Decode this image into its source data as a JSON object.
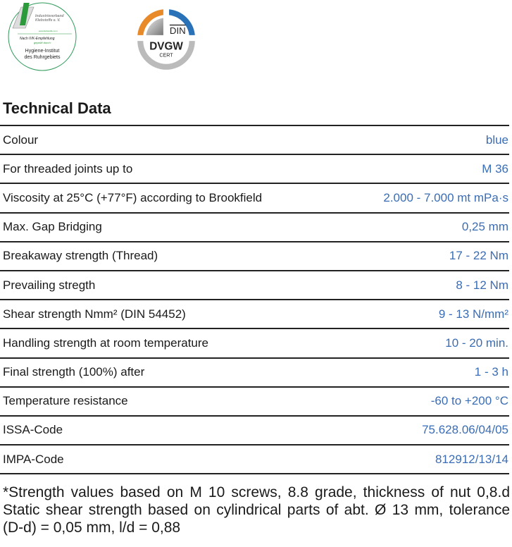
{
  "logos": {
    "ivk": [
      "Industrieverband",
      "Klebstoffe e. V.",
      "www.klebstoffe.com",
      "Nach IVK-Empfehlung",
      "geprüft durch:",
      "Hygiene-Institut",
      "des Ruhrgebiets"
    ],
    "dvgw": [
      "DIN",
      "DVGW",
      "CERT"
    ]
  },
  "title": "Technical Data",
  "rows": [
    {
      "label": "Colour",
      "value": "blue"
    },
    {
      "label": "For threaded joints up to",
      "value": "M 36"
    },
    {
      "label": "Viscosity  at 25°C (+77°F) according to Brookfield",
      "value": "2.000 - 7.000 mt mPa·s"
    },
    {
      "label": "Max. Gap Bridging",
      "value": "0,25 mm"
    },
    {
      "label": "Breakaway strength (Thread)",
      "value": "17 - 22 Nm"
    },
    {
      "label": "Prevailing stregth",
      "value": "8 - 12 Nm"
    },
    {
      "label": "Shear strength Nmm² (DIN 54452)",
      "value": "9 - 13 N/mm²"
    },
    {
      "label": "Handling strength at room temperature",
      "value": "10 - 20 min."
    },
    {
      "label": "Final strength (100%) after",
      "value": "1 - 3 h"
    },
    {
      "label": "Temperature resistance",
      "value": "-60 to +200 °C"
    },
    {
      "label": "ISSA-Code",
      "value": "75.628.06/04/05"
    },
    {
      "label": "IMPA-Code",
      "value": "812912/13/14"
    }
  ],
  "note": "*Strength values based on M 10 screws, 8.8 grade, thickness of nut 0,8.d Static shear strength based on cylindrical parts of abt. Ø 13 mm, tolerance (D-d) = 0,05 mm, l/d = 0,88"
}
